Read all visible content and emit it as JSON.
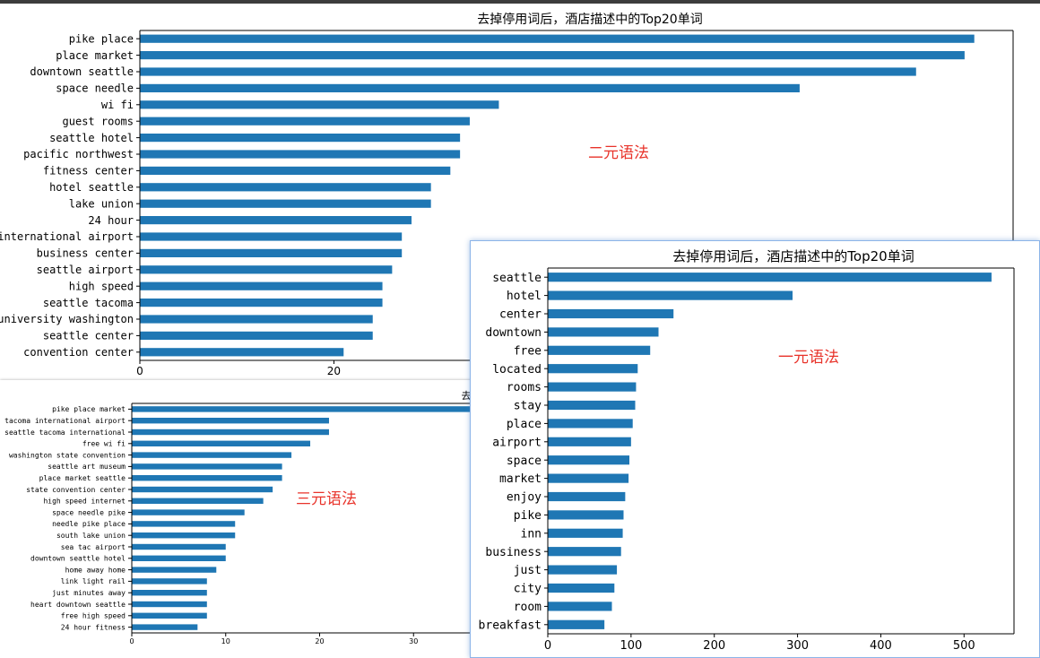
{
  "colors": {
    "bar": "#1f77b4",
    "axis": "#000000",
    "annotation": "#e8332a"
  },
  "annotations": {
    "bigram": "二元语法",
    "trigram": "三元语法",
    "unigram": "一元语法"
  },
  "chart_data": [
    {
      "type": "bar",
      "orientation": "horizontal",
      "title": "去掉停用词后，酒店描述中的Top20单词",
      "categories": [
        "pike place",
        "place market",
        "downtown seattle",
        "space needle",
        "wi fi",
        "guest rooms",
        "seattle hotel",
        "pacific northwest",
        "fitness center",
        "hotel seattle",
        "lake union",
        "24 hour",
        "international airport",
        "business center",
        "seattle airport",
        "high speed",
        "seattle tacoma",
        "university washington",
        "seattle center",
        "convention center"
      ],
      "values": [
        86,
        85,
        80,
        68,
        37,
        34,
        33,
        33,
        32,
        30,
        30,
        28,
        27,
        27,
        26,
        25,
        25,
        24,
        24,
        21
      ],
      "xlim": [
        0,
        90
      ],
      "xticks": [
        0,
        20
      ],
      "xlabel": "",
      "ylabel": ""
    },
    {
      "type": "bar",
      "orientation": "horizontal",
      "title": "去",
      "categories": [
        "pike place market",
        "tacoma international airport",
        "seattle tacoma international",
        "free wi fi",
        "washington state convention",
        "seattle art museum",
        "place market seattle",
        "state convention center",
        "high speed internet",
        "space needle pike",
        "needle pike place",
        "south lake union",
        "sea tac airport",
        "downtown seattle hotel",
        "home away home",
        "link light rail",
        "just minutes away",
        "heart downtown seattle",
        "free high speed",
        "24 hour fitness"
      ],
      "values": [
        41,
        21,
        21,
        19,
        17,
        16,
        16,
        15,
        14,
        12,
        11,
        11,
        10,
        10,
        9,
        8,
        8,
        8,
        8,
        7
      ],
      "xlim": [
        0,
        40
      ],
      "xticks": [
        0,
        10,
        20,
        30
      ],
      "xlabel": "",
      "ylabel": ""
    },
    {
      "type": "bar",
      "orientation": "horizontal",
      "title": "去掉停用词后，酒店描述中的Top20单词",
      "categories": [
        "seattle",
        "hotel",
        "center",
        "downtown",
        "free",
        "located",
        "rooms",
        "stay",
        "place",
        "airport",
        "space",
        "market",
        "enjoy",
        "pike",
        "inn",
        "business",
        "just",
        "city",
        "room",
        "breakfast"
      ],
      "values": [
        533,
        294,
        151,
        133,
        123,
        108,
        106,
        105,
        102,
        100,
        98,
        97,
        93,
        91,
        90,
        88,
        83,
        80,
        77,
        68
      ],
      "xlim": [
        0,
        560
      ],
      "xticks": [
        0,
        100,
        200,
        300,
        400,
        500
      ],
      "xlabel": "",
      "ylabel": ""
    }
  ]
}
